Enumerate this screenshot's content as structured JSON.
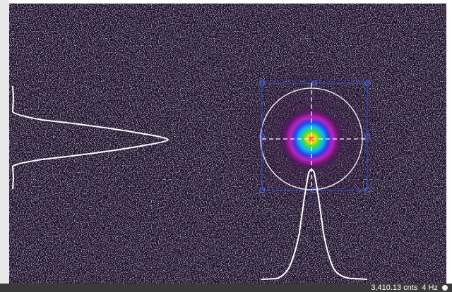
{
  "status": {
    "counts": "3,410.13 cnts",
    "rate": "4 Hz"
  }
}
